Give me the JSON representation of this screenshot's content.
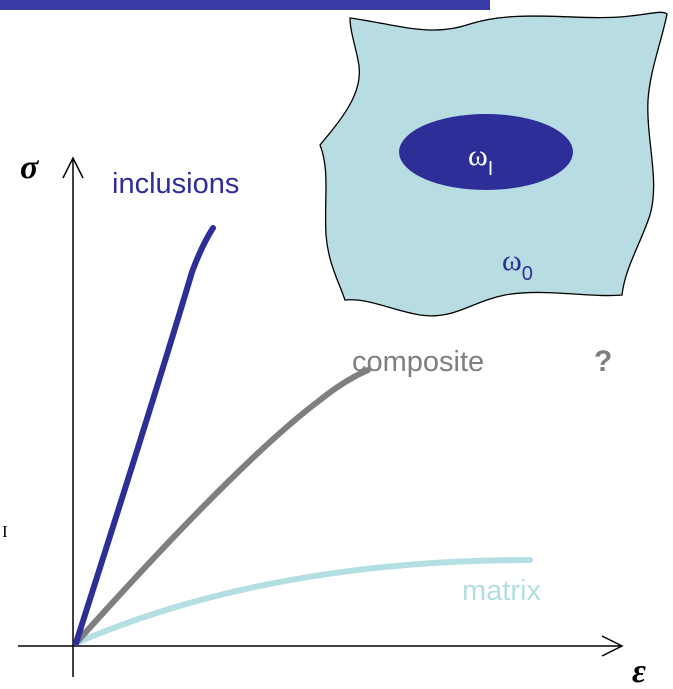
{
  "colors": {
    "title_bar": "#3a3aa6",
    "inclusions": "#2e2e99",
    "composite": "#7f7f7f",
    "matrix": "#b3dfe3",
    "blob_fill": "#b7dde2",
    "axis": "#000000"
  },
  "axes": {
    "y_symbol": "σ",
    "x_symbol": "ε"
  },
  "curves": {
    "inclusions": "inclusions",
    "composite": "composite",
    "matrix": "matrix"
  },
  "question_mark": "?",
  "side_mark": "I",
  "domain": {
    "inclusion_symbol": "ω",
    "inclusion_sub": "I",
    "matrix_symbol": "ω",
    "matrix_sub": "0"
  }
}
